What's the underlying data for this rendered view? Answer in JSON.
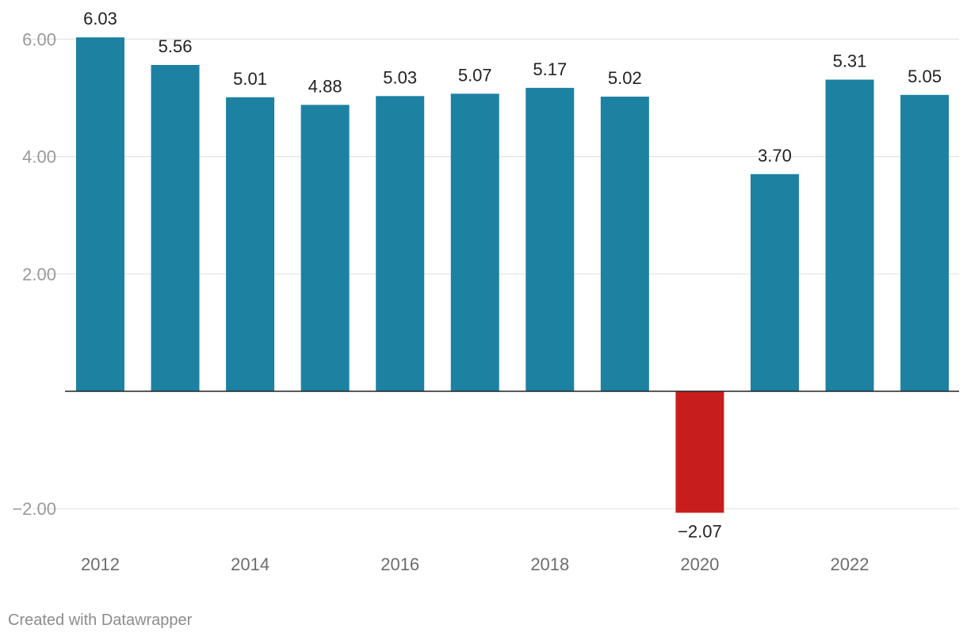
{
  "chart_data": {
    "type": "bar",
    "categories": [
      "2012",
      "2013",
      "2014",
      "2015",
      "2016",
      "2017",
      "2018",
      "2019",
      "2020",
      "2021",
      "2022",
      "2023"
    ],
    "values": [
      6.03,
      5.56,
      5.01,
      4.88,
      5.03,
      5.07,
      5.17,
      5.02,
      -2.07,
      3.7,
      5.31,
      5.05
    ],
    "value_labels": [
      "6.03",
      "5.56",
      "5.01",
      "4.88",
      "5.03",
      "5.07",
      "5.17",
      "5.02",
      "−2.07",
      "3.70",
      "5.31",
      "5.05"
    ],
    "x_tick_labels": [
      "2012",
      "",
      "2014",
      "",
      "2016",
      "",
      "2018",
      "",
      "2020",
      "",
      "2022",
      ""
    ],
    "y_ticks": [
      6,
      4,
      2,
      -2
    ],
    "y_tick_labels": [
      "6.00",
      "4.00",
      "2.00",
      "−2.00"
    ],
    "ylim": [
      -2.07,
      6.03
    ],
    "title": "",
    "xlabel": "",
    "ylabel": "",
    "grid": true,
    "colors": {
      "positive": "#1d81a2",
      "negative": "#c71e1d"
    }
  },
  "footer": {
    "credit": "Created with Datawrapper"
  }
}
